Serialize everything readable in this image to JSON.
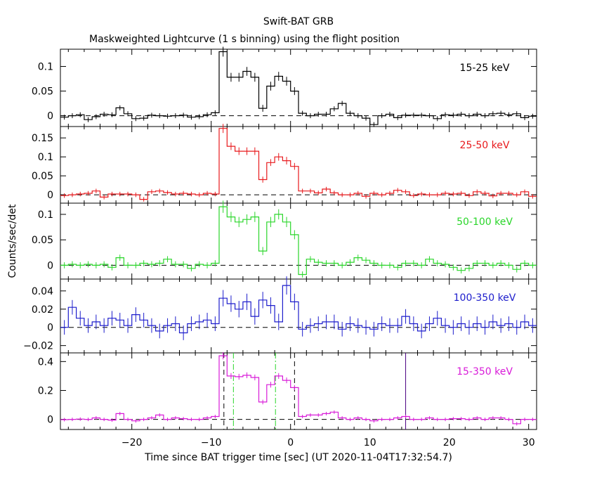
{
  "title": "Swift-BAT GRB",
  "subtitle": "Maskweighted Lightcurve (1 s binning) using the flight position",
  "chart_data": {
    "type": "line",
    "render_style": "step-histogram with 1-sigma error bars",
    "x_range": [
      -29,
      31
    ],
    "x_ticks": [
      -20,
      -10,
      0,
      10,
      20,
      30
    ],
    "xlabel": "Time since BAT trigger time [sec] (UT 2020-11-04T17:32:54.7)",
    "ylabel": "Counts/sec/det",
    "bin_width_s": 1,
    "panels": [
      {
        "label": "15-25 keV",
        "color": "#000000",
        "ylim": [
          -0.022,
          0.135
        ],
        "yticks": [
          0,
          0.05,
          0.1
        ],
        "ytick_labels": [
          "0",
          "0.05",
          "0.1"
        ],
        "x": [
          -28.5,
          -27.5,
          -26.5,
          -25.5,
          -24.5,
          -23.5,
          -22.5,
          -21.5,
          -20.5,
          -19.5,
          -18.5,
          -17.5,
          -16.5,
          -15.5,
          -14.5,
          -13.5,
          -12.5,
          -11.5,
          -10.5,
          -9.5,
          -8.5,
          -7.5,
          -6.5,
          -5.5,
          -4.5,
          -3.5,
          -2.5,
          -1.5,
          -0.5,
          0.5,
          1.5,
          2.5,
          3.5,
          4.5,
          5.5,
          6.5,
          7.5,
          8.5,
          9.5,
          10.5,
          11.5,
          12.5,
          13.5,
          14.5,
          15.5,
          16.5,
          17.5,
          18.5,
          19.5,
          20.5,
          21.5,
          22.5,
          23.5,
          24.5,
          25.5,
          26.5,
          27.5,
          28.5,
          29.5,
          30.5
        ],
        "y": [
          -0.003,
          0.0,
          0.002,
          -0.008,
          -0.002,
          0.003,
          0.002,
          0.016,
          0.004,
          -0.006,
          -0.005,
          0.001,
          0.0,
          -0.001,
          0.0,
          0.001,
          -0.003,
          -0.002,
          0.002,
          0.006,
          0.13,
          0.078,
          0.078,
          0.09,
          0.078,
          0.015,
          0.06,
          0.08,
          0.07,
          0.05,
          0.005,
          0.0,
          0.003,
          0.003,
          0.014,
          0.025,
          0.005,
          0.0,
          -0.005,
          -0.018,
          0.0,
          0.003,
          -0.004,
          0.001,
          0.001,
          0.001,
          0.0,
          -0.006,
          0.002,
          0.001,
          0.003,
          0.0,
          0.003,
          0.0,
          0.004,
          0.005,
          0.002,
          0.004,
          -0.004,
          -0.001
        ],
        "err": [
          0.005,
          0.005,
          0.005,
          0.005,
          0.005,
          0.005,
          0.005,
          0.005,
          0.005,
          0.005,
          0.005,
          0.005,
          0.005,
          0.005,
          0.005,
          0.005,
          0.005,
          0.005,
          0.005,
          0.005,
          0.01,
          0.009,
          0.009,
          0.009,
          0.009,
          0.007,
          0.009,
          0.009,
          0.009,
          0.008,
          0.005,
          0.005,
          0.005,
          0.005,
          0.005,
          0.005,
          0.005,
          0.005,
          0.005,
          0.005,
          0.005,
          0.005,
          0.005,
          0.005,
          0.005,
          0.005,
          0.005,
          0.005,
          0.005,
          0.005,
          0.005,
          0.005,
          0.005,
          0.005,
          0.005,
          0.005,
          0.005,
          0.005,
          0.005,
          0.005
        ]
      },
      {
        "label": "25-50 keV",
        "color": "#e8191c",
        "ylim": [
          -0.022,
          0.18
        ],
        "yticks": [
          0,
          0.05,
          0.1,
          0.15
        ],
        "ytick_labels": [
          "0",
          "0.05",
          "0.1",
          "0.15"
        ],
        "x": [
          -28.5,
          -27.5,
          -26.5,
          -25.5,
          -24.5,
          -23.5,
          -22.5,
          -21.5,
          -20.5,
          -19.5,
          -18.5,
          -17.5,
          -16.5,
          -15.5,
          -14.5,
          -13.5,
          -12.5,
          -11.5,
          -10.5,
          -9.5,
          -8.5,
          -7.5,
          -6.5,
          -5.5,
          -4.5,
          -3.5,
          -2.5,
          -1.5,
          -0.5,
          0.5,
          1.5,
          2.5,
          3.5,
          4.5,
          5.5,
          6.5,
          7.5,
          8.5,
          9.5,
          10.5,
          11.5,
          12.5,
          13.5,
          14.5,
          15.5,
          16.5,
          17.5,
          18.5,
          19.5,
          20.5,
          21.5,
          22.5,
          23.5,
          24.5,
          25.5,
          26.5,
          27.5,
          28.5,
          29.5,
          30.5
        ],
        "y": [
          -0.002,
          0.0,
          0.002,
          0.004,
          0.01,
          -0.006,
          0.002,
          0.002,
          0.002,
          0.0,
          -0.012,
          0.008,
          0.01,
          0.006,
          0.002,
          0.004,
          0.002,
          0.0,
          0.004,
          0.002,
          0.175,
          0.128,
          0.115,
          0.115,
          0.115,
          0.04,
          0.085,
          0.1,
          0.09,
          0.075,
          0.01,
          0.01,
          0.005,
          0.015,
          0.005,
          0.0,
          0.0,
          0.004,
          -0.004,
          0.004,
          0.0,
          0.004,
          0.012,
          0.008,
          -0.002,
          0.002,
          0.0,
          0.0,
          0.004,
          0.002,
          0.004,
          -0.002,
          0.008,
          0.004,
          -0.003,
          0.004,
          0.004,
          0.0,
          0.008,
          -0.004
        ],
        "err": [
          0.006,
          0.006,
          0.006,
          0.006,
          0.006,
          0.006,
          0.006,
          0.006,
          0.006,
          0.006,
          0.006,
          0.006,
          0.006,
          0.006,
          0.006,
          0.006,
          0.006,
          0.006,
          0.006,
          0.006,
          0.012,
          0.01,
          0.01,
          0.01,
          0.01,
          0.008,
          0.009,
          0.01,
          0.01,
          0.009,
          0.006,
          0.006,
          0.006,
          0.006,
          0.006,
          0.006,
          0.006,
          0.006,
          0.006,
          0.006,
          0.006,
          0.006,
          0.006,
          0.006,
          0.006,
          0.006,
          0.006,
          0.006,
          0.006,
          0.006,
          0.006,
          0.006,
          0.006,
          0.006,
          0.006,
          0.006,
          0.006,
          0.006,
          0.006,
          0.006
        ]
      },
      {
        "label": "50-100 keV",
        "color": "#2ad62a",
        "ylim": [
          -0.027,
          0.122
        ],
        "yticks": [
          0,
          0.05,
          0.1
        ],
        "ytick_labels": [
          "0",
          "0.05",
          "0.1"
        ],
        "x": [
          -28.5,
          -27.5,
          -26.5,
          -25.5,
          -24.5,
          -23.5,
          -22.5,
          -21.5,
          -20.5,
          -19.5,
          -18.5,
          -17.5,
          -16.5,
          -15.5,
          -14.5,
          -13.5,
          -12.5,
          -11.5,
          -10.5,
          -9.5,
          -8.5,
          -7.5,
          -6.5,
          -5.5,
          -4.5,
          -3.5,
          -2.5,
          -1.5,
          -0.5,
          0.5,
          1.5,
          2.5,
          3.5,
          4.5,
          5.5,
          6.5,
          7.5,
          8.5,
          9.5,
          10.5,
          11.5,
          12.5,
          13.5,
          14.5,
          15.5,
          16.5,
          17.5,
          18.5,
          19.5,
          20.5,
          21.5,
          22.5,
          23.5,
          24.5,
          25.5,
          26.5,
          27.5,
          28.5,
          29.5,
          30.5
        ],
        "y": [
          0.0,
          0.002,
          0.0,
          0.002,
          0.0,
          0.002,
          -0.004,
          0.015,
          0.0,
          0.0,
          0.004,
          0.002,
          0.004,
          0.012,
          0.002,
          0.002,
          -0.006,
          0.002,
          0.0,
          0.004,
          0.115,
          0.095,
          0.085,
          0.09,
          0.095,
          0.028,
          0.085,
          0.1,
          0.085,
          0.06,
          -0.018,
          0.012,
          0.006,
          0.004,
          0.004,
          0.0,
          0.006,
          0.015,
          0.01,
          0.004,
          0.0,
          0.0,
          -0.004,
          0.004,
          0.004,
          0.0,
          0.012,
          0.004,
          0.002,
          -0.004,
          -0.01,
          -0.006,
          0.004,
          0.004,
          0.0,
          0.004,
          0.0,
          -0.008,
          0.004,
          0.0
        ],
        "err": [
          0.006,
          0.006,
          0.006,
          0.006,
          0.006,
          0.006,
          0.006,
          0.006,
          0.006,
          0.006,
          0.006,
          0.006,
          0.006,
          0.006,
          0.006,
          0.006,
          0.006,
          0.006,
          0.006,
          0.006,
          0.012,
          0.01,
          0.01,
          0.01,
          0.01,
          0.008,
          0.01,
          0.01,
          0.01,
          0.009,
          0.006,
          0.006,
          0.006,
          0.006,
          0.006,
          0.006,
          0.006,
          0.006,
          0.006,
          0.006,
          0.006,
          0.006,
          0.006,
          0.006,
          0.006,
          0.006,
          0.006,
          0.006,
          0.006,
          0.006,
          0.006,
          0.006,
          0.006,
          0.006,
          0.006,
          0.006,
          0.006,
          0.006,
          0.006,
          0.006
        ]
      },
      {
        "label": "100-350 keV",
        "color": "#1d1dcc",
        "ylim": [
          -0.028,
          0.053
        ],
        "yticks": [
          -0.02,
          0,
          0.02,
          0.04
        ],
        "ytick_labels": [
          "−0.02",
          "0",
          "0.02",
          "0.04"
        ],
        "x": [
          -28.5,
          -27.5,
          -26.5,
          -25.5,
          -24.5,
          -23.5,
          -22.5,
          -21.5,
          -20.5,
          -19.5,
          -18.5,
          -17.5,
          -16.5,
          -15.5,
          -14.5,
          -13.5,
          -12.5,
          -11.5,
          -10.5,
          -9.5,
          -8.5,
          -7.5,
          -6.5,
          -5.5,
          -4.5,
          -3.5,
          -2.5,
          -1.5,
          -0.5,
          0.5,
          1.5,
          2.5,
          3.5,
          4.5,
          5.5,
          6.5,
          7.5,
          8.5,
          9.5,
          10.5,
          11.5,
          12.5,
          13.5,
          14.5,
          15.5,
          16.5,
          17.5,
          18.5,
          19.5,
          20.5,
          21.5,
          22.5,
          23.5,
          24.5,
          25.5,
          26.5,
          27.5,
          28.5,
          29.5,
          30.5
        ],
        "y": [
          0.0,
          0.022,
          0.01,
          0.002,
          0.006,
          0.002,
          0.01,
          0.008,
          0.002,
          0.014,
          0.008,
          0.002,
          -0.004,
          0.002,
          0.004,
          -0.006,
          0.004,
          0.006,
          0.008,
          0.004,
          0.032,
          0.026,
          0.02,
          0.028,
          0.012,
          0.03,
          0.024,
          0.006,
          0.046,
          0.028,
          -0.002,
          0.002,
          0.004,
          0.006,
          0.006,
          -0.002,
          0.004,
          0.002,
          0.0,
          -0.002,
          0.004,
          0.002,
          0.002,
          0.012,
          0.004,
          -0.004,
          0.004,
          0.01,
          0.002,
          0.0,
          0.004,
          0.0,
          0.004,
          0.0,
          0.006,
          0.002,
          0.004,
          0.0,
          0.006,
          0.002
        ],
        "err": [
          0.008,
          0.008,
          0.008,
          0.008,
          0.008,
          0.008,
          0.008,
          0.008,
          0.008,
          0.008,
          0.008,
          0.008,
          0.008,
          0.008,
          0.008,
          0.008,
          0.008,
          0.008,
          0.008,
          0.008,
          0.009,
          0.009,
          0.009,
          0.009,
          0.009,
          0.009,
          0.009,
          0.009,
          0.01,
          0.009,
          0.008,
          0.008,
          0.008,
          0.008,
          0.008,
          0.008,
          0.008,
          0.008,
          0.008,
          0.008,
          0.008,
          0.008,
          0.008,
          0.008,
          0.008,
          0.008,
          0.008,
          0.008,
          0.008,
          0.008,
          0.008,
          0.008,
          0.008,
          0.008,
          0.008,
          0.008,
          0.008,
          0.008,
          0.008,
          0.008
        ]
      },
      {
        "label": "15-350 keV",
        "color": "#d81bd8",
        "ylim": [
          -0.07,
          0.46
        ],
        "yticks": [
          0,
          0.2,
          0.4
        ],
        "ytick_labels": [
          "0",
          "0.2",
          "0.4"
        ],
        "x": [
          -28.5,
          -27.5,
          -26.5,
          -25.5,
          -24.5,
          -23.5,
          -22.5,
          -21.5,
          -20.5,
          -19.5,
          -18.5,
          -17.5,
          -16.5,
          -15.5,
          -14.5,
          -13.5,
          -12.5,
          -11.5,
          -10.5,
          -9.5,
          -8.5,
          -7.5,
          -6.5,
          -5.5,
          -4.5,
          -3.5,
          -2.5,
          -1.5,
          -0.5,
          0.5,
          1.5,
          2.5,
          3.5,
          4.5,
          5.5,
          6.5,
          7.5,
          8.5,
          9.5,
          10.5,
          11.5,
          12.5,
          13.5,
          14.5,
          15.5,
          16.5,
          17.5,
          18.5,
          19.5,
          20.5,
          21.5,
          22.5,
          23.5,
          24.5,
          25.5,
          26.5,
          27.5,
          28.5,
          29.5,
          30.5
        ],
        "y": [
          -0.002,
          0.0,
          0.002,
          0.0,
          0.01,
          0.0,
          -0.005,
          0.04,
          0.0,
          -0.01,
          0.0,
          0.01,
          0.03,
          0.0,
          0.01,
          0.005,
          0.0,
          0.0,
          0.01,
          0.02,
          0.44,
          0.3,
          0.295,
          0.305,
          0.29,
          0.12,
          0.24,
          0.3,
          0.27,
          0.22,
          0.02,
          0.03,
          0.03,
          0.04,
          0.05,
          0.01,
          0.0,
          0.01,
          0.0,
          -0.01,
          0.0,
          0.0,
          0.01,
          0.02,
          0.0,
          0.0,
          0.01,
          0.0,
          0.0,
          0.005,
          0.005,
          0.0,
          0.01,
          0.0,
          0.01,
          0.01,
          0.0,
          -0.03,
          0.0,
          0.0
        ],
        "err": [
          0.012,
          0.012,
          0.012,
          0.012,
          0.012,
          0.012,
          0.012,
          0.012,
          0.012,
          0.012,
          0.012,
          0.012,
          0.012,
          0.012,
          0.012,
          0.012,
          0.012,
          0.012,
          0.012,
          0.012,
          0.025,
          0.02,
          0.02,
          0.02,
          0.02,
          0.016,
          0.02,
          0.02,
          0.02,
          0.018,
          0.012,
          0.012,
          0.012,
          0.012,
          0.012,
          0.012,
          0.012,
          0.012,
          0.012,
          0.012,
          0.012,
          0.012,
          0.012,
          0.012,
          0.012,
          0.012,
          0.012,
          0.012,
          0.012,
          0.012,
          0.012,
          0.012,
          0.012,
          0.012,
          0.012,
          0.012,
          0.012,
          0.012,
          0.012,
          0.012
        ],
        "markers": [
          {
            "x": -8.4,
            "style": "dashed",
            "color": "#000000"
          },
          {
            "x": 0.5,
            "style": "dashed",
            "color": "#000000"
          },
          {
            "x": -7.2,
            "style": "dashdot",
            "color": "#2ad62a"
          },
          {
            "x": -1.9,
            "style": "dashdot",
            "color": "#2ad62a"
          },
          {
            "x": 14.5,
            "style": "solid",
            "color": "#4b0082"
          }
        ]
      }
    ]
  }
}
